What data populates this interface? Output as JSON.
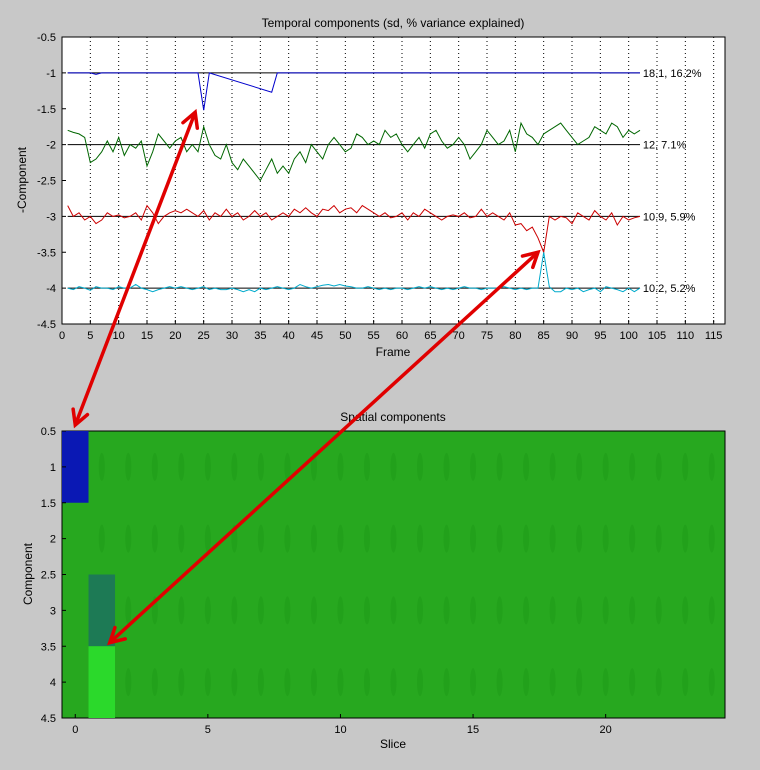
{
  "chart_data": [
    {
      "type": "line",
      "title": "Temporal components (sd, % variance explained)",
      "xlabel": "Frame",
      "ylabel": "-Component",
      "xlim": [
        0,
        117
      ],
      "ylim": [
        -4.5,
        -0.5
      ],
      "y_reversed": false,
      "xticks": [
        0,
        5,
        10,
        15,
        20,
        25,
        30,
        35,
        40,
        45,
        50,
        55,
        60,
        65,
        70,
        75,
        80,
        85,
        90,
        95,
        100,
        105,
        110,
        115
      ],
      "yticks": [
        -0.5,
        -1,
        -1.5,
        -2,
        -2.5,
        -3,
        -3.5,
        -4,
        -4.5
      ],
      "grid": "vertical dotted",
      "series": [
        {
          "name": "18.1, 16.2%",
          "baseline": -1,
          "color": "#0000cc",
          "x": [
            1,
            5,
            6,
            7,
            24,
            25,
            26,
            37,
            38,
            102
          ],
          "y": [
            -1,
            -1,
            -1.02,
            -1,
            -1,
            -1.52,
            -1,
            -1.27,
            -1,
            -1
          ]
        },
        {
          "name": "12, 7.1%",
          "baseline": -2,
          "color": "#006600",
          "x": [
            1,
            2,
            3,
            4,
            5,
            6,
            7,
            8,
            9,
            10,
            11,
            12,
            13,
            14,
            15,
            16,
            17,
            18,
            19,
            20,
            21,
            22,
            23,
            24,
            25,
            26,
            27,
            28,
            29,
            30,
            31,
            32,
            33,
            34,
            35,
            36,
            37,
            38,
            39,
            40,
            41,
            42,
            43,
            44,
            45,
            46,
            47,
            48,
            49,
            50,
            51,
            52,
            53,
            54,
            55,
            56,
            57,
            58,
            59,
            60,
            61,
            62,
            63,
            64,
            65,
            66,
            67,
            68,
            69,
            70,
            71,
            72,
            73,
            74,
            75,
            76,
            77,
            78,
            79,
            80,
            81,
            82,
            83,
            84,
            85,
            86,
            87,
            88,
            89,
            90,
            91,
            92,
            93,
            94,
            95,
            96,
            97,
            98,
            99,
            100,
            101,
            102
          ],
          "y": [
            -1.8,
            -1.83,
            -1.85,
            -1.9,
            -2.25,
            -2.2,
            -2.1,
            -1.95,
            -2.1,
            -1.9,
            -2.15,
            -2.0,
            -2.05,
            -1.95,
            -2.3,
            -2.1,
            -1.85,
            -1.95,
            -2.05,
            -1.95,
            -1.9,
            -2.1,
            -2.0,
            -2.1,
            -1.75,
            -2.0,
            -2.15,
            -2.2,
            -2.0,
            -2.25,
            -2.35,
            -2.2,
            -2.3,
            -2.4,
            -2.5,
            -2.35,
            -2.2,
            -2.4,
            -2.3,
            -2.4,
            -2.2,
            -2.1,
            -2.25,
            -2.0,
            -2.1,
            -2.2,
            -2.0,
            -1.9,
            -2.0,
            -2.1,
            -2.05,
            -1.85,
            -1.9,
            -2.0,
            -1.95,
            -2.0,
            -1.8,
            -1.9,
            -1.85,
            -2.0,
            -2.1,
            -2.0,
            -1.9,
            -2.05,
            -1.85,
            -1.8,
            -1.95,
            -2.05,
            -2.0,
            -1.9,
            -2.0,
            -2.2,
            -2.1,
            -2.0,
            -1.8,
            -1.9,
            -2.0,
            -1.95,
            -1.8,
            -2.1,
            -1.7,
            -1.85,
            -1.9,
            -2.0,
            -1.85,
            -1.8,
            -1.75,
            -1.7,
            -1.8,
            -1.9,
            -2.0,
            -1.95,
            -1.9,
            -1.75,
            -1.8,
            -1.85,
            -1.7,
            -1.75,
            -1.9,
            -1.8,
            -1.85,
            -1.8
          ]
        },
        {
          "name": "10.9, 5.9%",
          "baseline": -3,
          "color": "#cc0000",
          "x": [
            1,
            2,
            3,
            4,
            5,
            6,
            7,
            8,
            9,
            10,
            11,
            12,
            13,
            14,
            15,
            16,
            17,
            18,
            19,
            20,
            21,
            22,
            23,
            24,
            25,
            26,
            27,
            28,
            29,
            30,
            31,
            32,
            33,
            34,
            35,
            36,
            37,
            38,
            39,
            40,
            41,
            42,
            43,
            44,
            45,
            46,
            47,
            48,
            49,
            50,
            51,
            52,
            53,
            54,
            55,
            56,
            57,
            58,
            59,
            60,
            61,
            62,
            63,
            64,
            65,
            66,
            67,
            68,
            69,
            70,
            71,
            72,
            73,
            74,
            75,
            76,
            77,
            78,
            79,
            80,
            81,
            82,
            83,
            84,
            85,
            86,
            87,
            88,
            89,
            90,
            91,
            92,
            93,
            94,
            95,
            96,
            97,
            98,
            99,
            100,
            101,
            102
          ],
          "y": [
            -2.85,
            -3.0,
            -2.95,
            -3.05,
            -3.0,
            -3.1,
            -3.05,
            -2.95,
            -3.0,
            -2.98,
            -3.02,
            -3.0,
            -2.95,
            -3.05,
            -2.85,
            -2.95,
            -3.1,
            -3.0,
            -2.95,
            -2.92,
            -2.95,
            -2.9,
            -2.95,
            -3.0,
            -2.92,
            -3.05,
            -2.95,
            -3.0,
            -2.9,
            -3.0,
            -2.95,
            -3.05,
            -3.0,
            -2.92,
            -3.0,
            -2.95,
            -3.05,
            -3.0,
            -2.95,
            -3.0,
            -2.9,
            -2.95,
            -2.88,
            -2.95,
            -3.0,
            -2.9,
            -2.92,
            -2.85,
            -2.95,
            -2.9,
            -2.88,
            -2.95,
            -2.85,
            -2.9,
            -2.95,
            -3.0,
            -2.95,
            -3.02,
            -3.0,
            -2.95,
            -3.05,
            -2.95,
            -3.0,
            -2.9,
            -2.95,
            -3.0,
            -3.05,
            -3.0,
            -2.98,
            -3.0,
            -2.95,
            -3.02,
            -3.0,
            -2.9,
            -3.0,
            -2.95,
            -3.0,
            -3.05,
            -2.95,
            -3.12,
            -3.1,
            -3.2,
            -3.15,
            -3.3,
            -3.5,
            -3.0,
            -3.05,
            -3.0,
            -3.02,
            -3.1,
            -2.95,
            -3.0,
            -3.05,
            -2.92,
            -3.0,
            -3.05,
            -2.95,
            -3.12,
            -3.0,
            -3.05,
            -3.02,
            -3.0
          ]
        },
        {
          "name": "10.2, 5.2%",
          "baseline": -4,
          "color": "#00aacc",
          "x": [
            1,
            2,
            3,
            4,
            5,
            6,
            7,
            8,
            9,
            10,
            11,
            12,
            13,
            14,
            15,
            16,
            17,
            18,
            19,
            20,
            21,
            22,
            23,
            24,
            25,
            26,
            27,
            28,
            29,
            30,
            31,
            32,
            33,
            34,
            35,
            36,
            37,
            38,
            39,
            40,
            41,
            42,
            43,
            44,
            45,
            46,
            47,
            48,
            49,
            50,
            51,
            52,
            53,
            54,
            55,
            56,
            57,
            58,
            59,
            60,
            61,
            62,
            63,
            64,
            65,
            66,
            67,
            68,
            69,
            70,
            71,
            72,
            73,
            74,
            75,
            76,
            77,
            78,
            79,
            80,
            81,
            82,
            83,
            84,
            85,
            86,
            87,
            88,
            89,
            90,
            91,
            92,
            93,
            94,
            95,
            96,
            97,
            98,
            99,
            100,
            101,
            102
          ],
          "y": [
            -4.0,
            -4.02,
            -3.98,
            -4.0,
            -4.03,
            -3.98,
            -4.0,
            -4.0,
            -4.02,
            -3.98,
            -4.0,
            -4.0,
            -3.95,
            -4.0,
            -4.02,
            -4.05,
            -4.02,
            -4.0,
            -3.98,
            -4.0,
            -3.98,
            -4.0,
            -4.02,
            -4.0,
            -3.98,
            -4.02,
            -4.0,
            -4.02,
            -4.02,
            -4.0,
            -4.02,
            -4.05,
            -4.02,
            -4.05,
            -4.0,
            -4.02,
            -4.0,
            -3.98,
            -4.0,
            -4.02,
            -4.0,
            -3.95,
            -3.98,
            -4.0,
            -3.98,
            -3.96,
            -3.95,
            -3.97,
            -3.95,
            -3.97,
            -3.98,
            -4.0,
            -4.0,
            -3.98,
            -4.0,
            -4.02,
            -4.0,
            -4.02,
            -4.0,
            -4.0,
            -4.02,
            -4.0,
            -3.98,
            -4.0,
            -3.98,
            -4.0,
            -4.02,
            -4.0,
            -4.02,
            -4.0,
            -3.98,
            -4.0,
            -4.0,
            -4.02,
            -4.0,
            -4.0,
            -4.0,
            -3.98,
            -4.0,
            -4.02,
            -4.0,
            -4.02,
            -4.0,
            -4.0,
            -3.5,
            -3.98,
            -4.05,
            -4.05,
            -4.0,
            -4.02,
            -4.0,
            -4.05,
            -4.02,
            -4.0,
            -4.05,
            -3.98,
            -4.0,
            -4.02,
            -4.05,
            -4.0,
            -4.05,
            -4.0
          ]
        }
      ]
    },
    {
      "type": "heatmap",
      "title": "Spatial components",
      "xlabel": "Slice",
      "ylabel": "Component",
      "xlim": [
        -0.5,
        24.5
      ],
      "ylim": [
        4.5,
        0.5
      ],
      "xticks": [
        0,
        5,
        10,
        15,
        20
      ],
      "yticks": [
        0.5,
        1,
        1.5,
        2,
        2.5,
        3,
        3.5,
        4,
        4.5
      ],
      "colors": {
        "background": "#27a81f",
        "high": "#0a18b4",
        "mid": "#1a6e8c",
        "alt": "#2bd92b"
      },
      "highlight_blocks": [
        {
          "component": 1,
          "slices": [
            -0.5,
            0.5
          ],
          "color": "#0a18b4"
        },
        {
          "component": 3,
          "slices": [
            0.5,
            1.5
          ],
          "color": "#1d7a55"
        },
        {
          "component": 4,
          "slices": [
            0.5,
            1.5
          ],
          "color": "#2bd92b"
        }
      ]
    }
  ],
  "annotations": {
    "arrow_color": "#e00000",
    "arrows": [
      {
        "from": "component 1 dip at frame 25",
        "to": "spatial component 1, slice 0"
      },
      {
        "from": "component 3 dip at frame 85",
        "to": "spatial component 3, slice 1"
      }
    ]
  }
}
